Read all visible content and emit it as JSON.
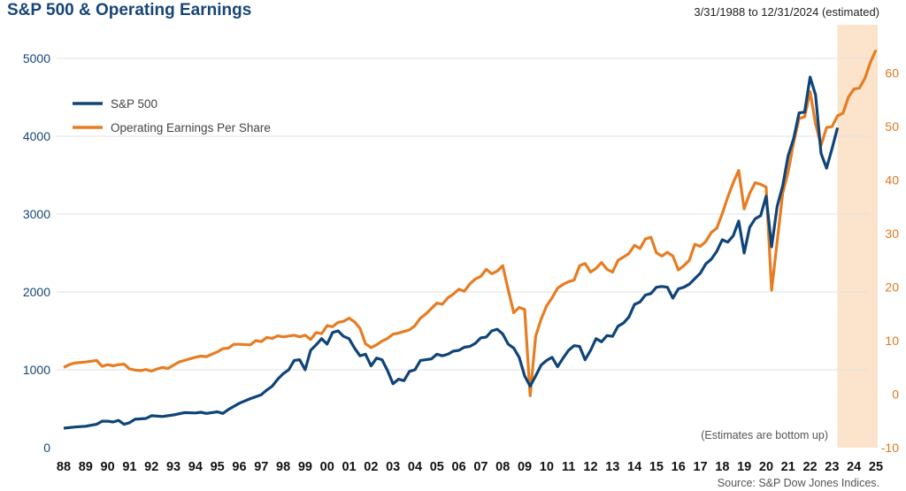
{
  "header": {
    "title": "S&P 500 & Operating Earnings",
    "date_range": "3/31/1988 to 12/31/2024 (estimated)"
  },
  "footer": {
    "source": "Source: S&P Dow Jones Indices."
  },
  "annotation": "(Estimates are bottom up)",
  "colors": {
    "sp500": "#0f4479",
    "eps": "#e67d22",
    "estimate_band": "#fbe3cc"
  },
  "chart_data": {
    "type": "line",
    "x_unit": "year",
    "xlim": [
      1988.0,
      2025.0
    ],
    "x_tick_labels": [
      "88",
      "89",
      "90",
      "91",
      "92",
      "93",
      "94",
      "95",
      "96",
      "97",
      "98",
      "99",
      "00",
      "01",
      "02",
      "03",
      "04",
      "05",
      "06",
      "07",
      "08",
      "09",
      "10",
      "11",
      "12",
      "13",
      "14",
      "15",
      "16",
      "17",
      "18",
      "19",
      "20",
      "21",
      "22",
      "23",
      "24",
      "25"
    ],
    "y_left": {
      "lim": [
        0,
        5500
      ],
      "ticks": [
        0,
        1000,
        2000,
        3000,
        4000,
        5000
      ]
    },
    "y_right": {
      "lim": [
        -10,
        70
      ],
      "ticks": [
        -10,
        0,
        10,
        20,
        30,
        40,
        50,
        60
      ]
    },
    "estimate_region": [
      2023.25,
      2025.0
    ],
    "grid": true,
    "legend_placement": "top-left",
    "series": [
      {
        "name": "S&P 500",
        "axis": "left",
        "points": [
          [
            1988.0,
            250
          ],
          [
            1988.5,
            265
          ],
          [
            1989.0,
            275
          ],
          [
            1989.5,
            300
          ],
          [
            1989.75,
            340
          ],
          [
            1990.0,
            340
          ],
          [
            1990.25,
            330
          ],
          [
            1990.5,
            350
          ],
          [
            1990.75,
            300
          ],
          [
            1991.0,
            320
          ],
          [
            1991.25,
            365
          ],
          [
            1991.75,
            375
          ],
          [
            1992.0,
            410
          ],
          [
            1992.5,
            400
          ],
          [
            1993.0,
            420
          ],
          [
            1993.5,
            450
          ],
          [
            1994.0,
            445
          ],
          [
            1994.25,
            455
          ],
          [
            1994.5,
            440
          ],
          [
            1995.0,
            460
          ],
          [
            1995.25,
            440
          ],
          [
            1995.5,
            490
          ],
          [
            1996.0,
            570
          ],
          [
            1996.5,
            630
          ],
          [
            1997.0,
            680
          ],
          [
            1997.25,
            740
          ],
          [
            1997.5,
            790
          ],
          [
            1997.75,
            880
          ],
          [
            1998.0,
            950
          ],
          [
            1998.25,
            1000
          ],
          [
            1998.5,
            1120
          ],
          [
            1998.75,
            1130
          ],
          [
            1999.0,
            1000
          ],
          [
            1999.25,
            1250
          ],
          [
            1999.5,
            1320
          ],
          [
            1999.75,
            1400
          ],
          [
            2000.0,
            1330
          ],
          [
            2000.25,
            1480
          ],
          [
            2000.5,
            1500
          ],
          [
            2000.75,
            1430
          ],
          [
            2001.0,
            1400
          ],
          [
            2001.25,
            1280
          ],
          [
            2001.5,
            1180
          ],
          [
            2001.75,
            1200
          ],
          [
            2002.0,
            1050
          ],
          [
            2002.25,
            1150
          ],
          [
            2002.5,
            1130
          ],
          [
            2002.75,
            990
          ],
          [
            2003.0,
            820
          ],
          [
            2003.25,
            880
          ],
          [
            2003.5,
            860
          ],
          [
            2003.75,
            980
          ],
          [
            2004.0,
            1000
          ],
          [
            2004.25,
            1120
          ],
          [
            2004.5,
            1130
          ],
          [
            2004.75,
            1140
          ],
          [
            2005.0,
            1200
          ],
          [
            2005.25,
            1180
          ],
          [
            2005.5,
            1200
          ],
          [
            2005.75,
            1240
          ],
          [
            2006.0,
            1250
          ],
          [
            2006.25,
            1290
          ],
          [
            2006.5,
            1300
          ],
          [
            2006.75,
            1340
          ],
          [
            2007.0,
            1410
          ],
          [
            2007.25,
            1420
          ],
          [
            2007.5,
            1500
          ],
          [
            2007.75,
            1520
          ],
          [
            2008.0,
            1460
          ],
          [
            2008.25,
            1330
          ],
          [
            2008.5,
            1280
          ],
          [
            2008.75,
            1160
          ],
          [
            2009.0,
            920
          ],
          [
            2009.25,
            790
          ],
          [
            2009.5,
            920
          ],
          [
            2009.75,
            1060
          ],
          [
            2010.0,
            1120
          ],
          [
            2010.25,
            1160
          ],
          [
            2010.5,
            1040
          ],
          [
            2010.75,
            1150
          ],
          [
            2011.0,
            1250
          ],
          [
            2011.25,
            1310
          ],
          [
            2011.5,
            1300
          ],
          [
            2011.75,
            1130
          ],
          [
            2012.0,
            1250
          ],
          [
            2012.25,
            1400
          ],
          [
            2012.5,
            1360
          ],
          [
            2012.75,
            1440
          ],
          [
            2013.0,
            1430
          ],
          [
            2013.25,
            1560
          ],
          [
            2013.5,
            1600
          ],
          [
            2013.75,
            1680
          ],
          [
            2014.0,
            1840
          ],
          [
            2014.25,
            1870
          ],
          [
            2014.5,
            1960
          ],
          [
            2014.75,
            1980
          ],
          [
            2015.0,
            2060
          ],
          [
            2015.25,
            2070
          ],
          [
            2015.5,
            2060
          ],
          [
            2015.75,
            1920
          ],
          [
            2016.0,
            2040
          ],
          [
            2016.25,
            2060
          ],
          [
            2016.5,
            2100
          ],
          [
            2016.75,
            2170
          ],
          [
            2017.0,
            2240
          ],
          [
            2017.25,
            2360
          ],
          [
            2017.5,
            2420
          ],
          [
            2017.75,
            2520
          ],
          [
            2018.0,
            2670
          ],
          [
            2018.25,
            2640
          ],
          [
            2018.5,
            2720
          ],
          [
            2018.75,
            2910
          ],
          [
            2019.0,
            2500
          ],
          [
            2019.25,
            2830
          ],
          [
            2019.5,
            2940
          ],
          [
            2019.75,
            2980
          ],
          [
            2020.0,
            3230
          ],
          [
            2020.25,
            2580
          ],
          [
            2020.5,
            3100
          ],
          [
            2020.75,
            3360
          ],
          [
            2021.0,
            3750
          ],
          [
            2021.25,
            3970
          ],
          [
            2021.5,
            4300
          ],
          [
            2021.75,
            4310
          ],
          [
            2022.0,
            4760
          ],
          [
            2022.25,
            4530
          ],
          [
            2022.5,
            3780
          ],
          [
            2022.75,
            3590
          ],
          [
            2023.0,
            3840
          ],
          [
            2023.25,
            4110
          ]
        ]
      },
      {
        "name": "Operating Earnings Per Share",
        "axis": "right",
        "points": [
          [
            1988.0,
            5.0
          ],
          [
            1988.25,
            5.5
          ],
          [
            1988.5,
            5.8
          ],
          [
            1989.0,
            6.0
          ],
          [
            1989.5,
            6.3
          ],
          [
            1989.75,
            5.2
          ],
          [
            1990.0,
            5.5
          ],
          [
            1990.25,
            5.3
          ],
          [
            1990.5,
            5.5
          ],
          [
            1990.75,
            5.6
          ],
          [
            1991.0,
            4.7
          ],
          [
            1991.25,
            4.5
          ],
          [
            1991.5,
            4.4
          ],
          [
            1991.75,
            4.6
          ],
          [
            1992.0,
            4.3
          ],
          [
            1992.25,
            4.7
          ],
          [
            1992.5,
            5.0
          ],
          [
            1992.75,
            4.8
          ],
          [
            1993.0,
            5.4
          ],
          [
            1993.25,
            6.0
          ],
          [
            1993.5,
            6.3
          ],
          [
            1994.0,
            6.9
          ],
          [
            1994.25,
            7.1
          ],
          [
            1994.5,
            7.0
          ],
          [
            1995.0,
            7.9
          ],
          [
            1995.25,
            8.5
          ],
          [
            1995.5,
            8.6
          ],
          [
            1995.75,
            9.3
          ],
          [
            1996.0,
            9.3
          ],
          [
            1996.5,
            9.2
          ],
          [
            1996.75,
            10.0
          ],
          [
            1997.0,
            9.8
          ],
          [
            1997.25,
            10.6
          ],
          [
            1997.5,
            10.4
          ],
          [
            1997.75,
            10.9
          ],
          [
            1998.0,
            10.7
          ],
          [
            1998.5,
            11.0
          ],
          [
            1998.75,
            10.7
          ],
          [
            1999.0,
            11.0
          ],
          [
            1999.25,
            10.2
          ],
          [
            1999.5,
            11.5
          ],
          [
            1999.75,
            11.3
          ],
          [
            2000.0,
            12.8
          ],
          [
            2000.25,
            12.6
          ],
          [
            2000.5,
            13.4
          ],
          [
            2000.75,
            13.6
          ],
          [
            2001.0,
            14.2
          ],
          [
            2001.25,
            13.5
          ],
          [
            2001.5,
            12.3
          ],
          [
            2001.75,
            9.4
          ],
          [
            2002.0,
            8.7
          ],
          [
            2002.25,
            9.2
          ],
          [
            2002.5,
            9.9
          ],
          [
            2002.75,
            10.4
          ],
          [
            2003.0,
            11.2
          ],
          [
            2003.25,
            11.4
          ],
          [
            2003.5,
            11.7
          ],
          [
            2003.75,
            12.0
          ],
          [
            2004.0,
            12.8
          ],
          [
            2004.25,
            14.2
          ],
          [
            2004.5,
            15.0
          ],
          [
            2004.75,
            16.0
          ],
          [
            2005.0,
            17.0
          ],
          [
            2005.25,
            16.8
          ],
          [
            2005.5,
            18.0
          ],
          [
            2005.75,
            18.7
          ],
          [
            2006.0,
            19.6
          ],
          [
            2006.25,
            19.2
          ],
          [
            2006.5,
            20.6
          ],
          [
            2006.75,
            21.5
          ],
          [
            2007.0,
            22.0
          ],
          [
            2007.25,
            23.3
          ],
          [
            2007.5,
            22.5
          ],
          [
            2007.75,
            23.0
          ],
          [
            2008.0,
            24.0
          ],
          [
            2008.25,
            19.5
          ],
          [
            2008.5,
            15.2
          ],
          [
            2008.75,
            16.2
          ],
          [
            2009.0,
            15.8
          ],
          [
            2009.25,
            -0.3
          ],
          [
            2009.5,
            10.8
          ],
          [
            2009.75,
            14.0
          ],
          [
            2010.0,
            16.5
          ],
          [
            2010.25,
            18.0
          ],
          [
            2010.5,
            19.8
          ],
          [
            2010.75,
            20.5
          ],
          [
            2011.0,
            21.0
          ],
          [
            2011.25,
            21.3
          ],
          [
            2011.5,
            24.0
          ],
          [
            2011.75,
            24.4
          ],
          [
            2012.0,
            22.8
          ],
          [
            2012.25,
            23.5
          ],
          [
            2012.5,
            24.6
          ],
          [
            2012.75,
            23.3
          ],
          [
            2013.0,
            22.8
          ],
          [
            2013.25,
            25.0
          ],
          [
            2013.5,
            25.6
          ],
          [
            2013.75,
            26.3
          ],
          [
            2014.0,
            27.8
          ],
          [
            2014.25,
            27.2
          ],
          [
            2014.5,
            29.0
          ],
          [
            2014.75,
            29.3
          ],
          [
            2015.0,
            26.4
          ],
          [
            2015.25,
            25.8
          ],
          [
            2015.5,
            26.5
          ],
          [
            2015.75,
            25.8
          ],
          [
            2016.0,
            23.2
          ],
          [
            2016.25,
            24.0
          ],
          [
            2016.5,
            25.0
          ],
          [
            2016.75,
            28.0
          ],
          [
            2017.0,
            27.6
          ],
          [
            2017.25,
            28.5
          ],
          [
            2017.5,
            30.2
          ],
          [
            2017.75,
            31.0
          ],
          [
            2018.0,
            33.7
          ],
          [
            2018.25,
            36.8
          ],
          [
            2018.5,
            39.5
          ],
          [
            2018.75,
            41.8
          ],
          [
            2019.0,
            34.6
          ],
          [
            2019.25,
            37.5
          ],
          [
            2019.5,
            39.5
          ],
          [
            2019.75,
            39.2
          ],
          [
            2020.0,
            38.7
          ],
          [
            2020.25,
            19.4
          ],
          [
            2020.5,
            28.5
          ],
          [
            2020.75,
            37.5
          ],
          [
            2021.0,
            41.5
          ],
          [
            2021.25,
            47.0
          ],
          [
            2021.5,
            51.5
          ],
          [
            2021.75,
            51.8
          ],
          [
            2022.0,
            56.5
          ],
          [
            2022.25,
            50.5
          ],
          [
            2022.5,
            46.5
          ],
          [
            2022.75,
            49.8
          ],
          [
            2023.0,
            50.0
          ],
          [
            2023.25,
            52.0
          ],
          [
            2023.5,
            52.5
          ],
          [
            2023.75,
            55.5
          ],
          [
            2024.0,
            57.0
          ],
          [
            2024.25,
            57.2
          ],
          [
            2024.5,
            59.0
          ],
          [
            2024.75,
            62.0
          ],
          [
            2025.0,
            64.3
          ]
        ]
      }
    ]
  }
}
